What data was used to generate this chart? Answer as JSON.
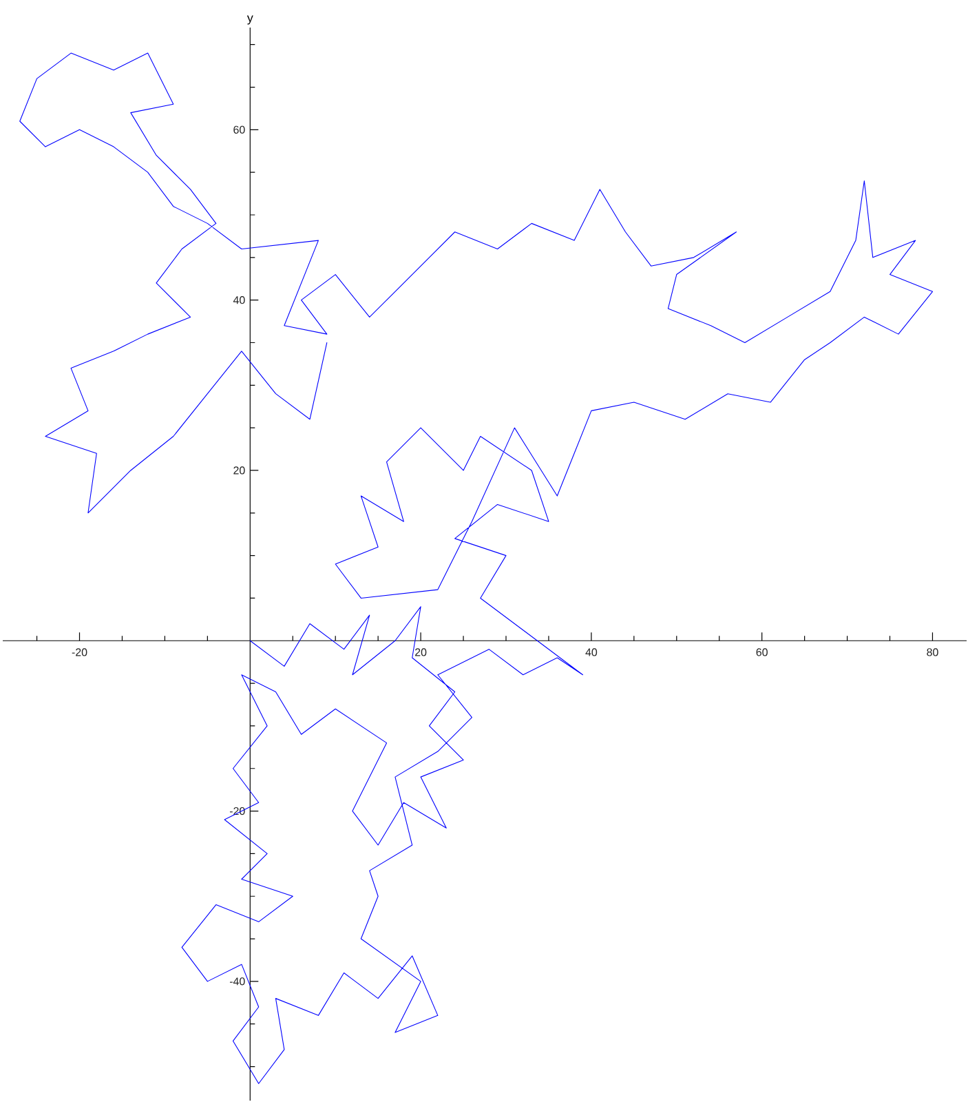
{
  "chart_data": {
    "type": "line",
    "ylabel": "y",
    "color": "#0000ff",
    "xlim": [
      -29,
      84
    ],
    "ylim": [
      -54,
      72
    ],
    "xticks": [
      {
        "value": -25,
        "label": null
      },
      -20,
      {
        "value": -15,
        "label": null
      },
      {
        "value": -10,
        "label": null
      },
      {
        "value": -5,
        "label": null
      },
      {
        "value": 5,
        "label": null
      },
      {
        "value": 10,
        "label": null
      },
      {
        "value": 15,
        "label": null
      },
      20,
      {
        "value": 25,
        "label": null
      },
      {
        "value": 30,
        "label": null
      },
      {
        "value": 35,
        "label": null
      },
      40,
      {
        "value": 45,
        "label": null
      },
      {
        "value": 50,
        "label": null
      },
      {
        "value": 55,
        "label": null
      },
      60,
      {
        "value": 65,
        "label": null
      },
      {
        "value": 70,
        "label": null
      },
      {
        "value": 75,
        "label": null
      },
      80
    ],
    "yticks": [
      {
        "value": -50,
        "label": null
      },
      {
        "value": -45,
        "label": null
      },
      -40,
      {
        "value": -35,
        "label": null
      },
      {
        "value": -30,
        "label": null
      },
      {
        "value": -25,
        "label": null
      },
      -20,
      {
        "value": -15,
        "label": null
      },
      {
        "value": -10,
        "label": null
      },
      {
        "value": -5,
        "label": null
      },
      {
        "value": 5,
        "label": null
      },
      {
        "value": 10,
        "label": null
      },
      {
        "value": 15,
        "label": null
      },
      20,
      {
        "value": 25,
        "label": null
      },
      {
        "value": 30,
        "label": null
      },
      {
        "value": 35,
        "label": null
      },
      40,
      {
        "value": 45,
        "label": null
      },
      {
        "value": 50,
        "label": null
      },
      {
        "value": 55,
        "label": null
      },
      60,
      {
        "value": 65,
        "label": null
      },
      {
        "value": 70,
        "label": null
      }
    ],
    "x": [
      0,
      4,
      7,
      11,
      14,
      12,
      17,
      20,
      19,
      24,
      21,
      25,
      20,
      23,
      18,
      15,
      12,
      16,
      10,
      6,
      3,
      -1,
      2,
      -2,
      1,
      -3,
      2,
      -1,
      5,
      1,
      -4,
      -8,
      -5,
      -1,
      1,
      -2,
      1,
      4,
      3,
      8,
      11,
      15,
      19,
      22,
      17,
      20,
      13,
      15,
      14,
      19,
      17,
      22,
      26,
      22,
      28,
      32,
      36,
      39,
      27,
      30,
      24,
      29,
      35,
      33,
      27,
      25,
      20,
      16,
      18,
      13,
      15,
      10,
      13,
      22,
      26,
      31,
      36,
      38,
      40,
      45,
      51,
      56,
      61,
      65,
      68,
      72,
      76,
      80,
      75,
      78,
      73,
      72,
      71,
      68,
      63,
      58,
      54,
      49,
      50,
      57,
      52,
      47,
      44,
      41,
      38,
      33,
      29,
      24,
      21,
      17,
      14,
      10,
      6,
      9,
      4,
      8,
      -1,
      -5,
      -9,
      -12,
      -16,
      -20,
      -24,
      -27,
      -25,
      -21,
      -16,
      -12,
      -9,
      -14,
      -11,
      -7,
      -4,
      -8,
      -11,
      -7,
      -12,
      -16,
      -21,
      -19,
      -24,
      -18,
      -19,
      -14,
      -9,
      -5,
      -1,
      3,
      7,
      9
    ],
    "values": [
      0,
      -3,
      2,
      -1,
      3,
      -4,
      0,
      4,
      -2,
      -6,
      -10,
      -14,
      -16,
      -22,
      -19,
      -24,
      -20,
      -12,
      -8,
      -11,
      -6,
      -4,
      -10,
      -15,
      -19,
      -21,
      -25,
      -28,
      -30,
      -33,
      -31,
      -36,
      -40,
      -38,
      -43,
      -47,
      -52,
      -48,
      -42,
      -44,
      -39,
      -42,
      -37,
      -44,
      -46,
      -40,
      -35,
      -30,
      -27,
      -24,
      -16,
      -13,
      -9,
      -4,
      -1,
      -4,
      -2,
      -4,
      5,
      10,
      12,
      16,
      14,
      20,
      24,
      20,
      25,
      21,
      14,
      17,
      11,
      9,
      5,
      6,
      14,
      25,
      17,
      22,
      27,
      28,
      26,
      29,
      28,
      33,
      35,
      38,
      36,
      41,
      43,
      47,
      45,
      54,
      47,
      41,
      38,
      35,
      37,
      39,
      43,
      48,
      45,
      44,
      48,
      53,
      47,
      49,
      46,
      48,
      45,
      41,
      38,
      43,
      40,
      36,
      37,
      47,
      46,
      49,
      51,
      55,
      58,
      60,
      58,
      61,
      66,
      69,
      67,
      69,
      63,
      62,
      57,
      53,
      49,
      46,
      42,
      38,
      36,
      34,
      32,
      27,
      24,
      22,
      15,
      20,
      24,
      29,
      34,
      29,
      26,
      35
    ]
  }
}
